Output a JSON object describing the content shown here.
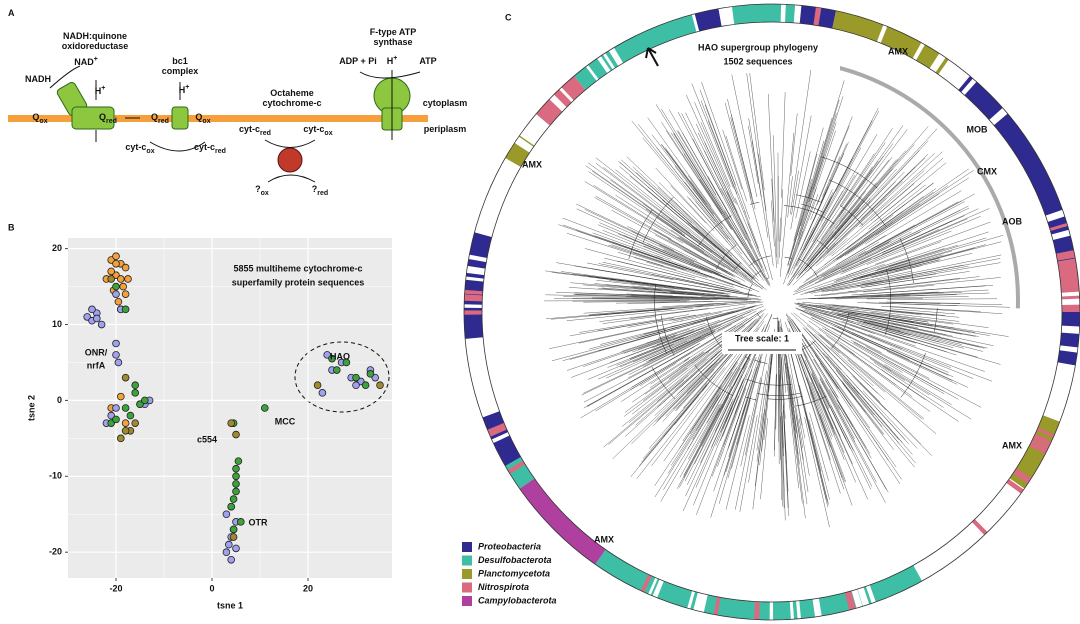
{
  "panel_a": {
    "labels": [
      {
        "text": "A"
      },
      {
        "text": "NADH:quinone"
      },
      {
        "text": "oxidoreductase"
      },
      {
        "text": "NAD",
        "sup": "+"
      },
      {
        "text": "NADH"
      },
      {
        "text": "H",
        "sup": "+"
      },
      {
        "text": "Q",
        "sub": "ox"
      },
      {
        "text": "Q",
        "sub": "red"
      },
      {
        "text": "bc1"
      },
      {
        "text": "complex"
      },
      {
        "text": "H",
        "sup": "+"
      },
      {
        "text": "Q",
        "sub": "red"
      },
      {
        "text": "Q",
        "sub": "ox"
      },
      {
        "text": "cyt-c",
        "sub": "ox"
      },
      {
        "text": "cyt-c",
        "sub": "red"
      },
      {
        "text": "Octaheme"
      },
      {
        "text": "cytochrome-c"
      },
      {
        "text": "cyt-c",
        "sub": "red"
      },
      {
        "text": "cyt-c",
        "sub": "ox"
      },
      {
        "text": "?",
        "sub": "ox"
      },
      {
        "text": "?",
        "sub": "red"
      },
      {
        "text": "F-type ATP"
      },
      {
        "text": "synthase"
      },
      {
        "text": "ADP + Pi"
      },
      {
        "text": "H",
        "sup": "+"
      },
      {
        "text": "ATP"
      },
      {
        "text": "cytoplasm"
      },
      {
        "text": "periplasm"
      }
    ]
  },
  "chart_data": {
    "type": "scatter",
    "panel_label": "B",
    "x_label": "tsne 1",
    "y_label": "tsne 2",
    "annotations": [
      "5855 multiheme cytochrome-c",
      "superfamily protein sequences",
      "ONR/",
      "nrfA",
      "HAO",
      "MCC",
      "c554",
      "OTR"
    ],
    "xlim": [
      -30,
      37.5
    ],
    "ylim": [
      -23.4,
      21.4
    ],
    "xticks": [
      -20,
      0,
      20
    ],
    "yticks": [
      -20,
      -10,
      0,
      10,
      20
    ],
    "grid": true,
    "series": [
      {
        "color": "#f5a03a",
        "x": [
          -21,
          -20,
          -19,
          -18,
          -20,
          -19,
          -18.5,
          -21,
          -20.5,
          -19.5,
          -18,
          -17.5,
          -20,
          -19,
          -22,
          -21,
          -15,
          -18,
          -19
        ],
        "values": [
          18.5,
          19,
          18,
          17.5,
          16.5,
          16,
          15,
          17,
          14.5,
          13,
          14,
          16,
          18,
          12,
          16,
          -1,
          -0.5,
          -3,
          0.5
        ]
      },
      {
        "color": "#a0a0f0",
        "x": [
          -26,
          -25,
          -24,
          -23,
          -25,
          -24,
          -20,
          -20,
          -19.5,
          -22,
          -21,
          -20,
          -13,
          -14,
          3,
          3.5,
          4,
          4.5,
          5,
          3,
          4,
          5,
          4,
          23,
          25,
          27,
          29,
          31,
          33,
          34,
          24,
          30,
          -20,
          -19
        ],
        "values": [
          11,
          10.5,
          11.5,
          10,
          12,
          10.8,
          7.5,
          6,
          5,
          -3,
          -2,
          -1,
          0,
          -0.5,
          -20,
          -19,
          -18,
          -17,
          -16,
          -15,
          -14,
          -19.5,
          -21,
          1,
          4,
          5,
          3,
          2.5,
          4,
          3,
          6,
          2,
          14,
          12
        ]
      },
      {
        "color": "#3aa43a",
        "x": [
          -18,
          -17,
          -16,
          -15,
          -14,
          -16,
          -21,
          -20,
          5,
          5,
          5.5,
          5,
          4.5,
          4,
          5,
          6,
          4.5,
          26,
          28,
          30,
          32,
          33,
          25,
          4.5,
          11,
          -20,
          -18
        ],
        "values": [
          -1,
          -2,
          1,
          -0.5,
          0,
          2,
          -3,
          -2.5,
          -10,
          -9,
          -8,
          -12,
          -13,
          -14,
          -11,
          -16,
          -17,
          4,
          5,
          3,
          2,
          3.5,
          5.5,
          -3,
          -1,
          15,
          12
        ]
      },
      {
        "color": "#a08a30",
        "x": [
          -17,
          -19,
          -16,
          -18,
          4,
          5,
          4.5,
          -18,
          22,
          35,
          -21
        ],
        "values": [
          -4,
          -5,
          -3,
          3,
          -3,
          -4.5,
          -18,
          -4,
          2,
          2,
          16
        ]
      }
    ]
  },
  "panel_c": {
    "panel_label": "C",
    "title": [
      "HAO supergroup phylogeny",
      "1502 sequences"
    ],
    "clade_labels": [
      "AMX",
      "AMX",
      "MOB",
      "CMX",
      "AOB",
      "AMX",
      "AMX"
    ],
    "tree_scale": "Tree scale: 1",
    "legend": [
      {
        "name": "Proteobacteria",
        "color": "#2e2a8f"
      },
      {
        "name": "Desulfobacterota",
        "color": "#3ebfa5"
      },
      {
        "name": "Planctomycetota",
        "color": "#9a9a2a"
      },
      {
        "name": "Nitrospirota",
        "color": "#d96a80"
      },
      {
        "name": "Campylobacterota",
        "color": "#b040a0"
      }
    ]
  }
}
